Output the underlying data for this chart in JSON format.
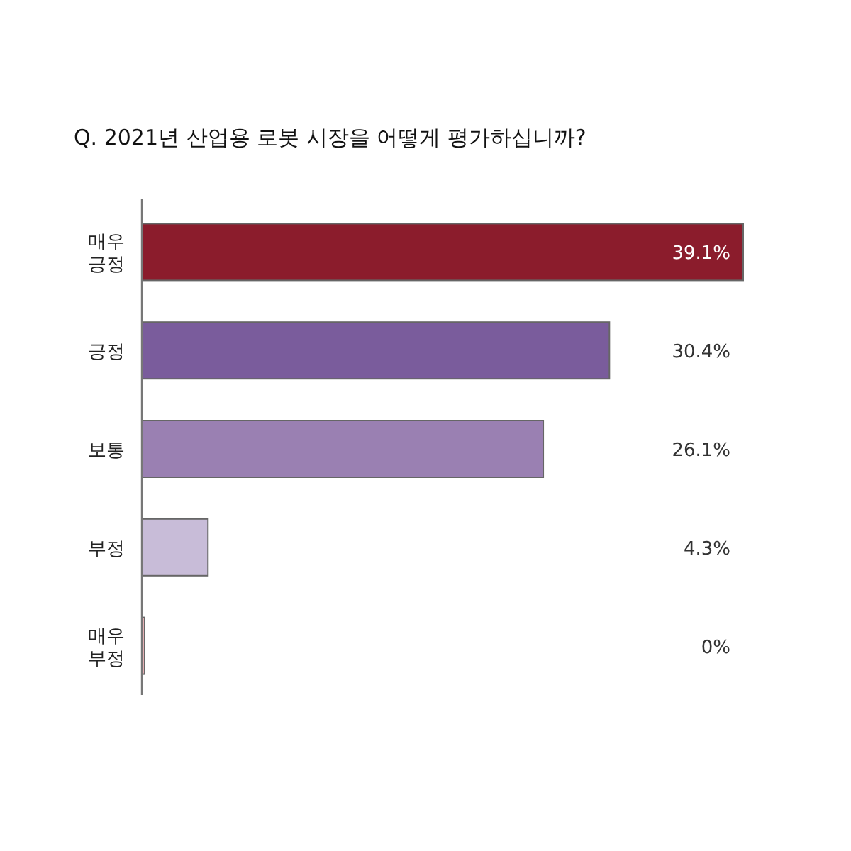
{
  "chart_data": {
    "type": "bar",
    "orientation": "horizontal",
    "title": "Q. 2021년 산업용 로봇 시장을 어떻게 평가하십니까?",
    "categories": [
      "매우 긍정",
      "긍정",
      "보통",
      "부정",
      "매우 부정"
    ],
    "values": [
      39.1,
      30.4,
      26.1,
      4.3,
      0
    ],
    "colors": [
      "#8b1c2c",
      "#7a5c9c",
      "#9a80b2",
      "#c8bcd8",
      "#e6b0b4"
    ],
    "value_labels": [
      "39.1%",
      "30.4%",
      "26.1%",
      "4.3%",
      "0%"
    ]
  }
}
